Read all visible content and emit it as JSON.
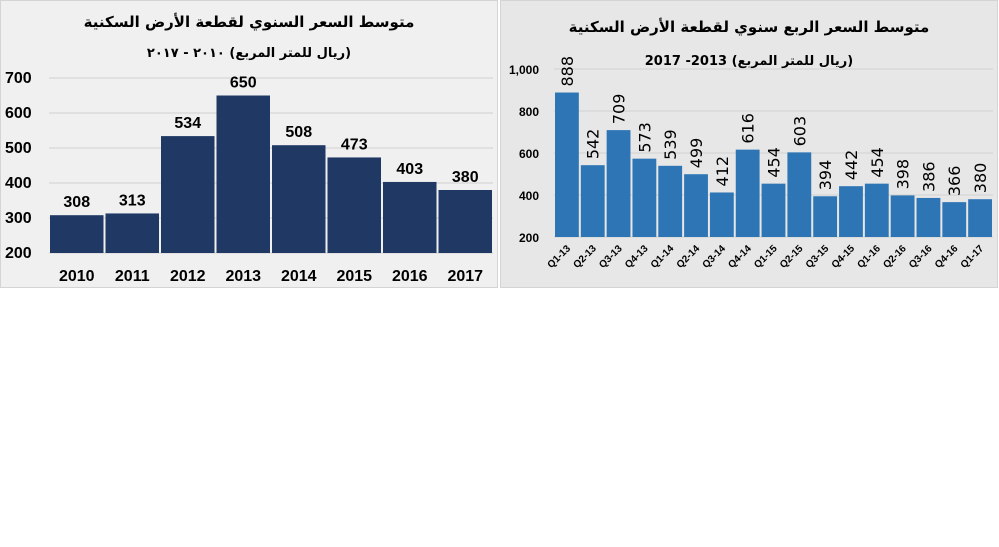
{
  "chart_data": [
    {
      "type": "bar",
      "title": "متوسط السعر السنوي لقطعة الأرض السكنية",
      "subtitle": "(ريال للمتر المربع) ٢٠١٠ - ٢٠١٧",
      "categories": [
        "2010",
        "2011",
        "2012",
        "2013",
        "2014",
        "2015",
        "2016",
        "2017"
      ],
      "values": [
        308,
        313,
        534,
        650,
        508,
        473,
        403,
        380
      ],
      "ylim": [
        200,
        700
      ],
      "yticks": [
        "200",
        "300",
        "400",
        "500",
        "600",
        "700"
      ],
      "grid": true,
      "bar_color": "#1f3864",
      "xlabel": "",
      "ylabel": ""
    },
    {
      "type": "bar",
      "title": "متوسط السعر الربع سنوي لقطعة الأرض السكنية",
      "subtitle": "(ريال للمتر المربع) 2013- 2017",
      "categories": [
        "Q1-13",
        "Q2-13",
        "Q3-13",
        "Q4-13",
        "Q1-14",
        "Q2-14",
        "Q3-14",
        "Q4-14",
        "Q1-15",
        "Q2-15",
        "Q3-15",
        "Q4-15",
        "Q1-16",
        "Q2-16",
        "Q3-16",
        "Q4-16",
        "Q1-17"
      ],
      "values": [
        888,
        542,
        709,
        573,
        539,
        499,
        412,
        616,
        454,
        603,
        394,
        442,
        454,
        398,
        386,
        366,
        380
      ],
      "ylim": [
        200,
        1000
      ],
      "yticks": [
        "200",
        "400",
        "600",
        "800",
        "1,000"
      ],
      "grid": true,
      "bar_color": "#2e75b6",
      "xlabel": "",
      "ylabel": ""
    }
  ]
}
